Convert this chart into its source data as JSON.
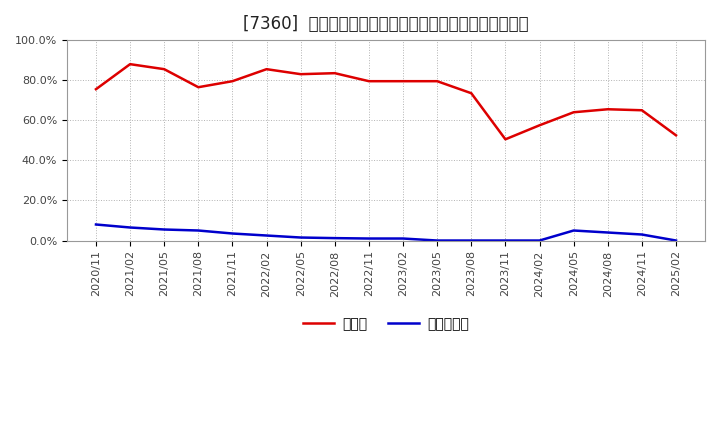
{
  "title": "[7360]  現顔金、有利子負債の総資産に対する比率の推移",
  "legend_cash": "現顔金",
  "legend_debt": "有利子負債",
  "x_labels": [
    "2020/11",
    "2021/02",
    "2021/05",
    "2021/08",
    "2021/11",
    "2022/02",
    "2022/05",
    "2022/08",
    "2022/11",
    "2023/02",
    "2023/05",
    "2023/08",
    "2023/11",
    "2024/02",
    "2024/05",
    "2024/08",
    "2024/11",
    "2025/02"
  ],
  "cash": [
    75.5,
    88.0,
    85.5,
    76.5,
    79.5,
    85.5,
    83.0,
    83.5,
    79.5,
    79.5,
    79.5,
    73.5,
    50.5,
    57.5,
    64.0,
    65.5,
    65.0,
    52.5
  ],
  "debt": [
    8.0,
    6.5,
    5.5,
    5.0,
    3.5,
    2.5,
    1.5,
    1.2,
    1.0,
    1.0,
    0.0,
    0.0,
    0.0,
    0.0,
    5.0,
    4.0,
    3.0,
    0.0
  ],
  "cash_color": "#dd0000",
  "debt_color": "#0000cc",
  "ylim_min": 0,
  "ylim_max": 100,
  "yticks": [
    0,
    20,
    40,
    60,
    80,
    100
  ],
  "ytick_labels": [
    "0.0%",
    "20.0%",
    "40.0%",
    "60.0%",
    "80.0%",
    "100.0%"
  ],
  "background_color": "#ffffff",
  "plot_bg_color": "#ffffff",
  "grid_color": "#aaaaaa",
  "title_fontsize": 12,
  "tick_fontsize": 8,
  "legend_fontsize": 10,
  "linewidth": 1.8
}
